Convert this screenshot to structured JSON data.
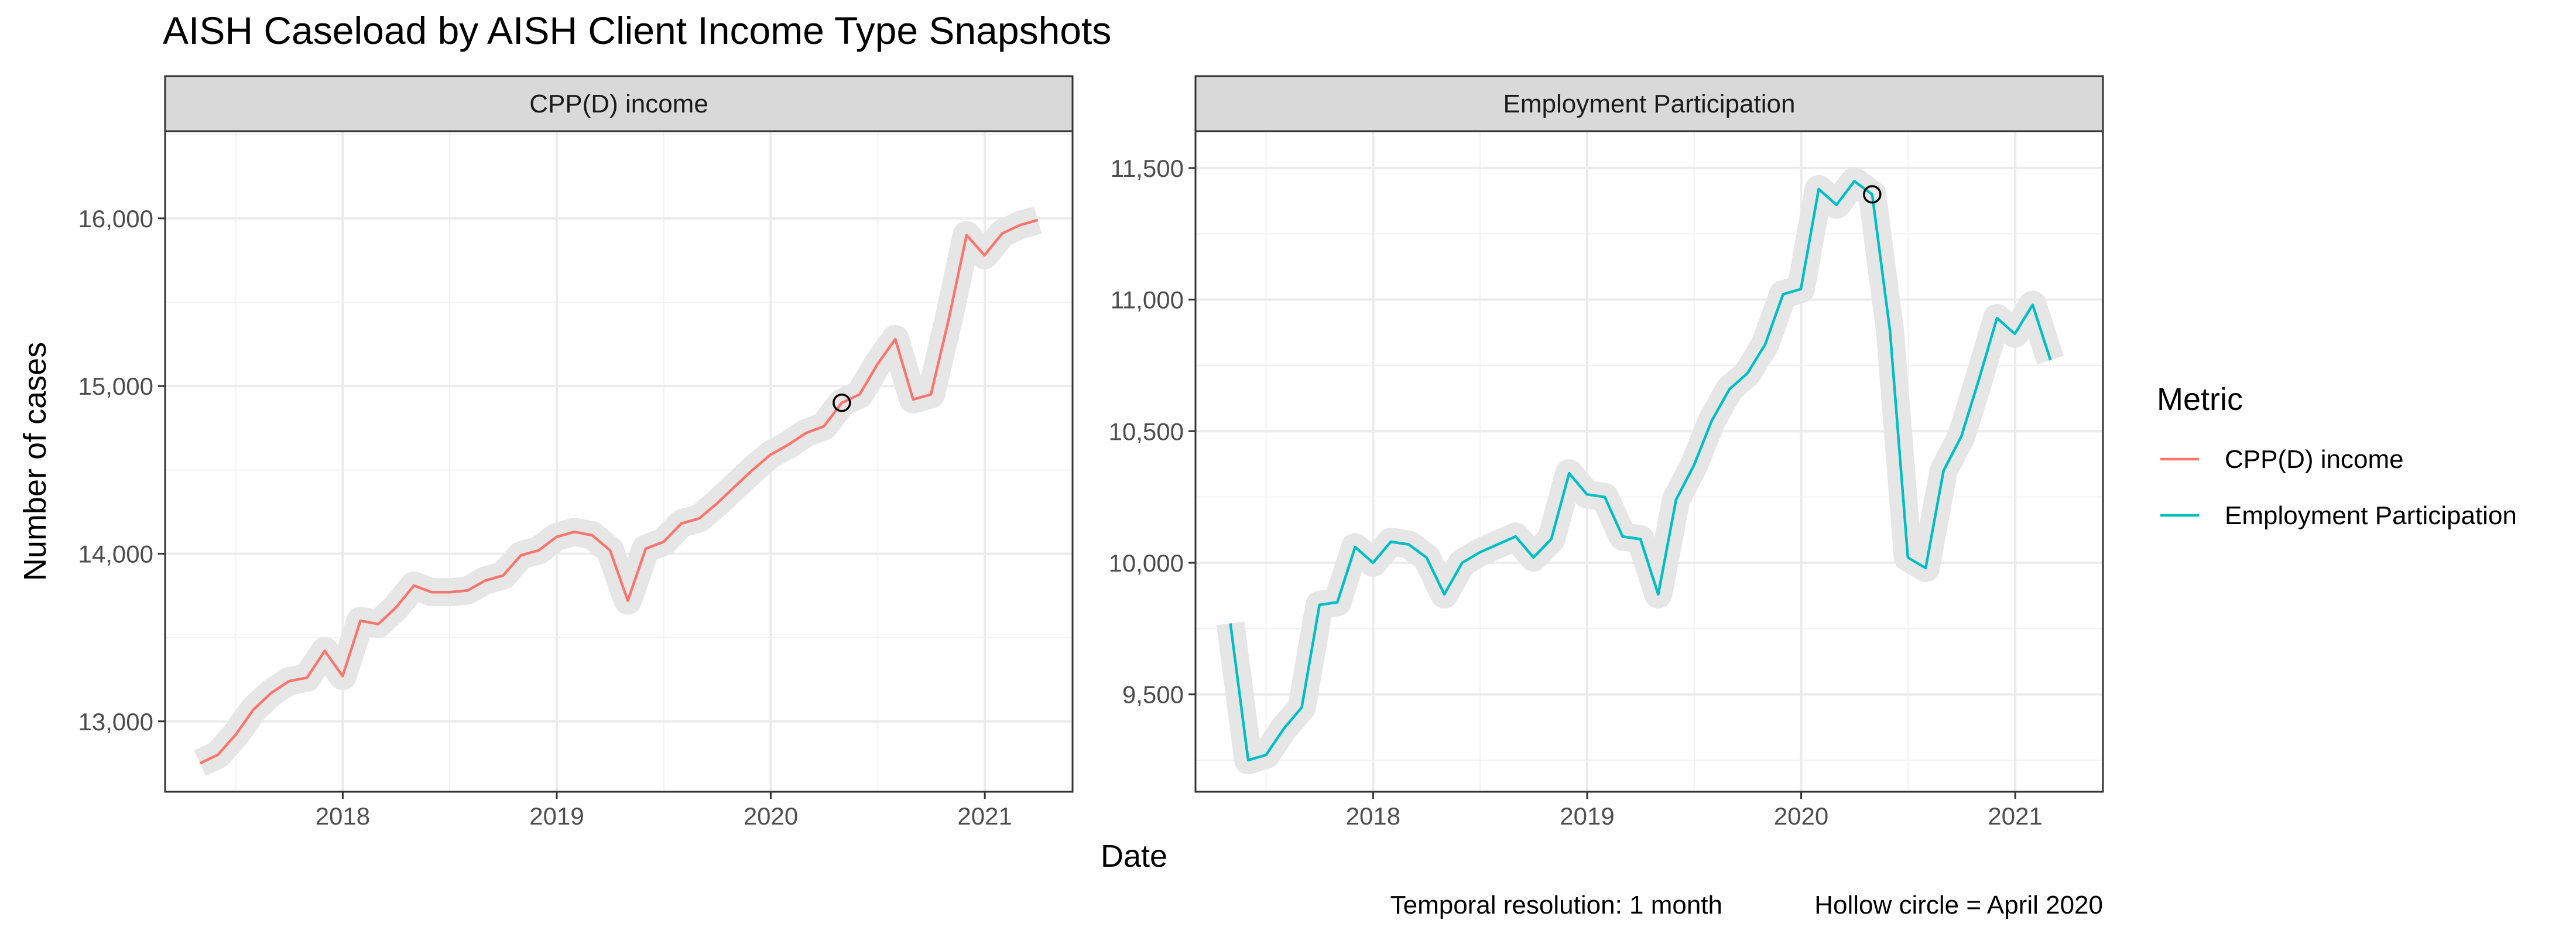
{
  "chart_data": {
    "title": "AISH Caseload by AISH Client Income Type Snapshots",
    "xlabel": "Date",
    "ylabel": "Number of cases",
    "legend": {
      "title": "Metric",
      "position": "right",
      "entries": [
        {
          "name": "CPP(D) income",
          "color": "#F8766D"
        },
        {
          "name": "Employment Participation",
          "color": "#00BFC4"
        }
      ]
    },
    "captions": [
      "Temporal resolution: 1 month",
      "Hollow circle = April 2020"
    ],
    "grid": true,
    "highlight_color": "#e6e6e6",
    "x_ticks": [
      {
        "value": 2018,
        "label": "2018"
      },
      {
        "value": 2019,
        "label": "2019"
      },
      {
        "value": 2020,
        "label": "2020"
      },
      {
        "value": 2021,
        "label": "2021"
      }
    ],
    "xlim": [
      2017.17,
      2021.41
    ],
    "panels": [
      {
        "type": "line",
        "strip": "CPP(D) income",
        "series_name": "CPP(D) income",
        "color": "#F8766D",
        "ylim": [
          12580,
          16520
        ],
        "y_ticks": [
          {
            "value": 13000,
            "label": "13,000"
          },
          {
            "value": 14000,
            "label": "14,000"
          },
          {
            "value": 15000,
            "label": "15,000"
          },
          {
            "value": 16000,
            "label": "16,000"
          }
        ],
        "start": 2017.333,
        "step": 0.0833,
        "values": [
          12750,
          12800,
          12920,
          13070,
          13170,
          13240,
          13260,
          13420,
          13270,
          13600,
          13580,
          13680,
          13810,
          13770,
          13770,
          13780,
          13840,
          13870,
          13990,
          14020,
          14100,
          14130,
          14110,
          14020,
          13720,
          14030,
          14070,
          14180,
          14210,
          14300,
          14400,
          14500,
          14590,
          14650,
          14720,
          14760,
          14900,
          14950,
          15130,
          15280,
          14920,
          14950,
          15400,
          15900,
          15780,
          15910,
          15960,
          15990
        ],
        "marker_index": 36
      },
      {
        "type": "line",
        "strip": "Employment Participation",
        "series_name": "Employment Participation",
        "color": "#00BFC4",
        "ylim": [
          9130,
          11640
        ],
        "y_ticks": [
          {
            "value": 9500,
            "label": "9,500"
          },
          {
            "value": 10000,
            "label": "10,000"
          },
          {
            "value": 10500,
            "label": "10,500"
          },
          {
            "value": 11000,
            "label": "11,000"
          },
          {
            "value": 11500,
            "label": "11,500"
          }
        ],
        "start": 2017.333,
        "step": 0.0833,
        "values": [
          9770,
          9250,
          9270,
          9370,
          9450,
          9840,
          9850,
          10060,
          10000,
          10080,
          10070,
          10020,
          9880,
          10000,
          10040,
          10070,
          10100,
          10020,
          10090,
          10340,
          10260,
          10250,
          10100,
          10090,
          9880,
          10240,
          10370,
          10540,
          10660,
          10720,
          10830,
          11020,
          11040,
          11420,
          11360,
          11450,
          11400,
          10880,
          10020,
          9980,
          10350,
          10480,
          10700,
          10930,
          10870,
          10980,
          10770
        ],
        "marker_index": 36
      }
    ]
  }
}
